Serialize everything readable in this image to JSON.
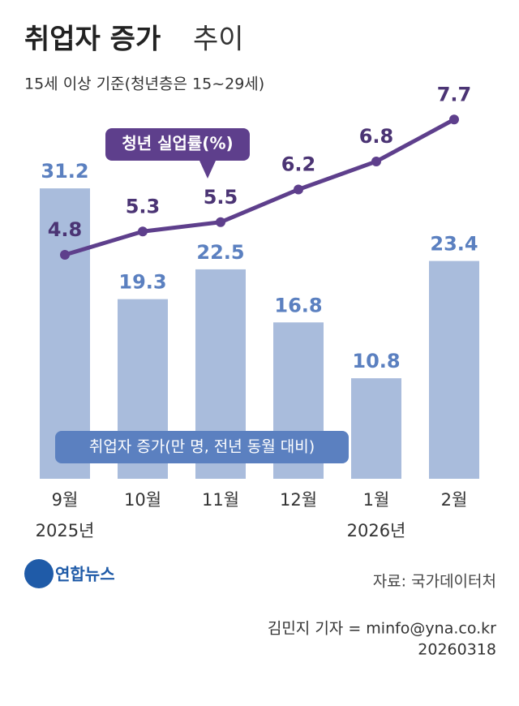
{
  "chart_data": {
    "type": "bar-line",
    "title": {
      "bold": "취업자 증가",
      "light": "추이"
    },
    "subtitle": "15세 이상 기준(청년층은 15~29세)",
    "categories": [
      "9월",
      "10월",
      "11월",
      "12월",
      "1월",
      "2월"
    ],
    "year_labels": [
      "2025년",
      null,
      null,
      null,
      "2026년",
      null
    ],
    "series": [
      {
        "name": "취업자 증가(만 명, 전년 동월 대비)",
        "type": "bar",
        "color": "#a9bcdc",
        "label_color": "#5b80c0",
        "values": [
          31.2,
          19.3,
          22.5,
          16.8,
          10.8,
          23.4
        ]
      },
      {
        "name": "청년 실업률(%)",
        "type": "line",
        "color": "#5e3f8c",
        "label_color": "#4b3474",
        "values": [
          4.8,
          5.3,
          5.5,
          6.2,
          6.8,
          7.7
        ]
      }
    ]
  },
  "footer": {
    "logo": "연합뉴스",
    "source": "자료: 국가데이터처",
    "credit": "김민지 기자 = minfo@yna.co.kr",
    "date": "20260318"
  }
}
